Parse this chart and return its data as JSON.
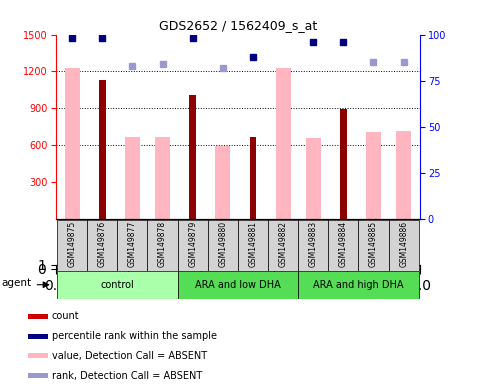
{
  "title": "GDS2652 / 1562409_s_at",
  "samples": [
    "GSM149875",
    "GSM149876",
    "GSM149877",
    "GSM149878",
    "GSM149879",
    "GSM149880",
    "GSM149881",
    "GSM149882",
    "GSM149883",
    "GSM149884",
    "GSM149885",
    "GSM149886"
  ],
  "count_values": [
    null,
    1130,
    null,
    null,
    1010,
    null,
    670,
    null,
    null,
    895,
    null,
    null
  ],
  "value_absent": [
    1230,
    null,
    665,
    665,
    null,
    590,
    null,
    1230,
    660,
    null,
    710,
    715
  ],
  "percentile_rank": [
    98,
    98,
    null,
    null,
    98,
    null,
    88,
    null,
    96,
    96,
    null,
    null
  ],
  "rank_absent": [
    null,
    null,
    83,
    84,
    null,
    82,
    null,
    null,
    null,
    null,
    85,
    85
  ],
  "ylim_left": [
    0,
    1500
  ],
  "ylim_right": [
    0,
    100
  ],
  "yticks_left": [
    300,
    600,
    900,
    1200,
    1500
  ],
  "yticks_right": [
    0,
    25,
    50,
    75,
    100
  ],
  "count_color": "#8B0000",
  "value_absent_color": "#FFB6C1",
  "percentile_color": "#000080",
  "rank_absent_color": "#9999CC",
  "cell_bg": "#D3D3D3",
  "group_control_color": "#AAFFAA",
  "group_ara_low_color": "#55DD55",
  "group_ara_high_color": "#55DD55",
  "legend_items": [
    {
      "color": "#CC0000",
      "label": "count",
      "marker": "square"
    },
    {
      "color": "#000080",
      "label": "percentile rank within the sample",
      "marker": "square"
    },
    {
      "color": "#FFB6C1",
      "label": "value, Detection Call = ABSENT",
      "marker": "square"
    },
    {
      "color": "#9999CC",
      "label": "rank, Detection Call = ABSENT",
      "marker": "square"
    }
  ]
}
